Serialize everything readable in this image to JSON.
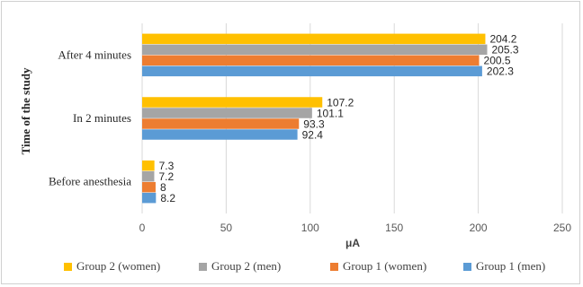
{
  "chart_data": {
    "type": "bar",
    "orientation": "horizontal",
    "categories": [
      "Before anesthesia",
      "In 2 minutes",
      "After 4 minutes"
    ],
    "series": [
      {
        "name": "Group 1 (men)",
        "color": "#5b9bd5",
        "values": [
          8.2,
          92.4,
          202.3
        ]
      },
      {
        "name": "Group 1 (women)",
        "color": "#ed7d31",
        "values": [
          8,
          93.3,
          200.5
        ]
      },
      {
        "name": "Group 2 (men)",
        "color": "#a5a5a5",
        "values": [
          7.2,
          101.1,
          205.3
        ]
      },
      {
        "name": "Group 2 (women)",
        "color": "#ffc000",
        "values": [
          7.3,
          107.2,
          204.2
        ]
      }
    ],
    "legend_order": [
      "Group 2 (women)",
      "Group 2 (men)",
      "Group 1 (women)",
      "Group 1 (men)"
    ],
    "xlabel": "μA",
    "ylabel": "Time of the study",
    "xlim": [
      0,
      250
    ],
    "xticks": [
      0,
      50,
      100,
      150,
      200,
      250
    ],
    "grid": true,
    "legend_position": "bottom"
  }
}
